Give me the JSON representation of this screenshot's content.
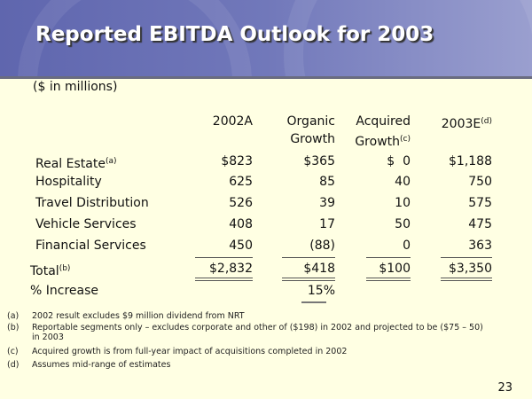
{
  "title": "Reported EBITDA Outlook for 2003",
  "units": "($ in millions)",
  "columns": [
    {
      "line1": "2002A",
      "line2": "",
      "sup": ""
    },
    {
      "line1": "Organic",
      "line2": "Growth",
      "sup": ""
    },
    {
      "line1": "Acquired",
      "line2": "Growth",
      "sup": "(c)"
    },
    {
      "line1": "2003E",
      "line2": "",
      "sup": "(d)"
    }
  ],
  "rows": [
    {
      "label": "Real Estate",
      "sup": "(a)",
      "values": [
        "$823",
        "$365",
        "$  0",
        "$1,188"
      ]
    },
    {
      "label": "Hospitality",
      "sup": "",
      "values": [
        "625",
        "85",
        "40",
        "750"
      ]
    },
    {
      "label": "Travel Distribution",
      "sup": "",
      "values": [
        "526",
        "39",
        "10",
        "575"
      ]
    },
    {
      "label": "Vehicle Services",
      "sup": "",
      "values": [
        "408",
        "17",
        "50",
        "475"
      ]
    },
    {
      "label": "Financial Services",
      "sup": "",
      "values": [
        "450",
        "(88)",
        "0",
        "363"
      ]
    }
  ],
  "total": {
    "label": "Total",
    "sup": "(b)",
    "values": [
      "$2,832",
      "$418",
      "$100",
      "$3,350"
    ]
  },
  "increase": {
    "label": "% Increase",
    "value": "15%"
  },
  "footnotes": [
    {
      "key": "(a)",
      "text": "2002 result excludes $9 million dividend from NRT"
    },
    {
      "key": "(b)",
      "text": "Reportable segments only – excludes corporate and other of ($198) in 2002 and projected to be ($75 – 50) in 2003"
    },
    {
      "key": "(c)",
      "text": "Acquired growth is from full-year impact of acquisitions completed in 2002"
    },
    {
      "key": "(d)",
      "text": "Assumes mid-range of estimates"
    }
  ],
  "page_number": "23",
  "colors": {
    "header": "#6E74B8",
    "background": "#FFFFE3"
  }
}
